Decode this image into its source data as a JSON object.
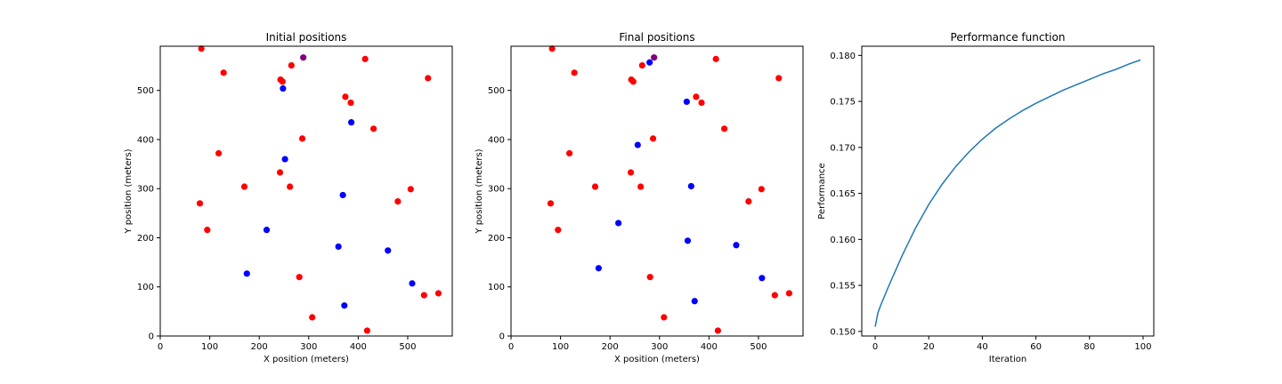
{
  "colors": {
    "red": "#ff0000",
    "blue": "#0000ff",
    "purple": "#800080",
    "line": "#1f77b4",
    "background": "#ffffff"
  },
  "chart_data": [
    {
      "type": "scatter",
      "title": "Initial positions",
      "xlabel": "X position (meters)",
      "ylabel": "Y position (meters)",
      "xlim": [
        0,
        590
      ],
      "ylim": [
        0,
        590
      ],
      "xticks": [
        0,
        100,
        200,
        300,
        400,
        500
      ],
      "yticks": [
        0,
        100,
        200,
        300,
        400,
        500
      ],
      "grid": false,
      "series": [
        {
          "color": "red",
          "points": [
            [
              83,
              585
            ],
            [
              128,
              536
            ],
            [
              265,
              551
            ],
            [
              414,
              564
            ],
            [
              243,
              522
            ],
            [
              247,
              518
            ],
            [
              541,
              525
            ],
            [
              374,
              487
            ],
            [
              385,
              475
            ],
            [
              431,
              422
            ],
            [
              287,
              402
            ],
            [
              118,
              372
            ],
            [
              170,
              304
            ],
            [
              242,
              333
            ],
            [
              262,
              304
            ],
            [
              506,
              299
            ],
            [
              480,
              274
            ],
            [
              80,
              270
            ],
            [
              95,
              216
            ],
            [
              281,
              120
            ],
            [
              307,
              38
            ],
            [
              418,
              11
            ],
            [
              533,
              83
            ],
            [
              562,
              87
            ]
          ]
        },
        {
          "color": "blue",
          "points": [
            [
              248,
              504
            ],
            [
              386,
              435
            ],
            [
              252,
              360
            ],
            [
              369,
              287
            ],
            [
              215,
              216
            ],
            [
              360,
              182
            ],
            [
              460,
              174
            ],
            [
              175,
              127
            ],
            [
              509,
              107
            ],
            [
              372,
              62
            ]
          ]
        },
        {
          "color": "purple",
          "points": [
            [
              289,
              567
            ]
          ]
        }
      ]
    },
    {
      "type": "scatter",
      "title": "Final positions",
      "xlabel": "X position (meters)",
      "ylabel": "Y position (meters)",
      "xlim": [
        0,
        590
      ],
      "ylim": [
        0,
        590
      ],
      "xticks": [
        0,
        100,
        200,
        300,
        400,
        500
      ],
      "yticks": [
        0,
        100,
        200,
        300,
        400,
        500
      ],
      "grid": false,
      "series": [
        {
          "color": "red",
          "points": [
            [
              83,
              585
            ],
            [
              128,
              536
            ],
            [
              265,
              551
            ],
            [
              414,
              564
            ],
            [
              243,
              522
            ],
            [
              247,
              518
            ],
            [
              541,
              525
            ],
            [
              374,
              487
            ],
            [
              385,
              475
            ],
            [
              431,
              422
            ],
            [
              287,
              402
            ],
            [
              118,
              372
            ],
            [
              170,
              304
            ],
            [
              242,
              333
            ],
            [
              262,
              304
            ],
            [
              506,
              299
            ],
            [
              480,
              274
            ],
            [
              80,
              270
            ],
            [
              95,
              216
            ],
            [
              281,
              120
            ],
            [
              309,
              38
            ],
            [
              418,
              11
            ],
            [
              533,
              83
            ],
            [
              562,
              87
            ]
          ]
        },
        {
          "color": "blue",
          "points": [
            [
              280,
              557
            ],
            [
              355,
              477
            ],
            [
              256,
              389
            ],
            [
              364,
              305
            ],
            [
              217,
              230
            ],
            [
              357,
              194
            ],
            [
              455,
              185
            ],
            [
              177,
              138
            ],
            [
              507,
              118
            ],
            [
              371,
              71
            ]
          ]
        },
        {
          "color": "purple",
          "points": [
            [
              289,
              567
            ]
          ]
        }
      ]
    },
    {
      "type": "line",
      "title": "Performance function",
      "xlabel": "Iteration",
      "ylabel": "Performance",
      "xlim": [
        -5,
        104
      ],
      "ylim": [
        0.1495,
        0.181
      ],
      "xticks": [
        0,
        20,
        40,
        60,
        80,
        100
      ],
      "yticks": [
        0.15,
        0.155,
        0.16,
        0.165,
        0.17,
        0.175,
        0.18
      ],
      "ytick_labels": [
        "0.150",
        "0.155",
        "0.160",
        "0.165",
        "0.170",
        "0.175",
        "0.180"
      ],
      "grid": false,
      "series": [
        {
          "color": "line",
          "x": [
            0,
            1,
            2,
            5,
            10,
            15,
            20,
            25,
            30,
            35,
            40,
            45,
            50,
            55,
            60,
            65,
            70,
            75,
            80,
            85,
            90,
            95,
            99
          ],
          "y": [
            0.1505,
            0.152,
            0.1528,
            0.1549,
            0.1582,
            0.1612,
            0.1638,
            0.166,
            0.1679,
            0.1695,
            0.1709,
            0.1721,
            0.1731,
            0.174,
            0.1748,
            0.1755,
            0.1762,
            0.1768,
            0.1774,
            0.178,
            0.1785,
            0.1791,
            0.1795
          ]
        }
      ]
    }
  ]
}
